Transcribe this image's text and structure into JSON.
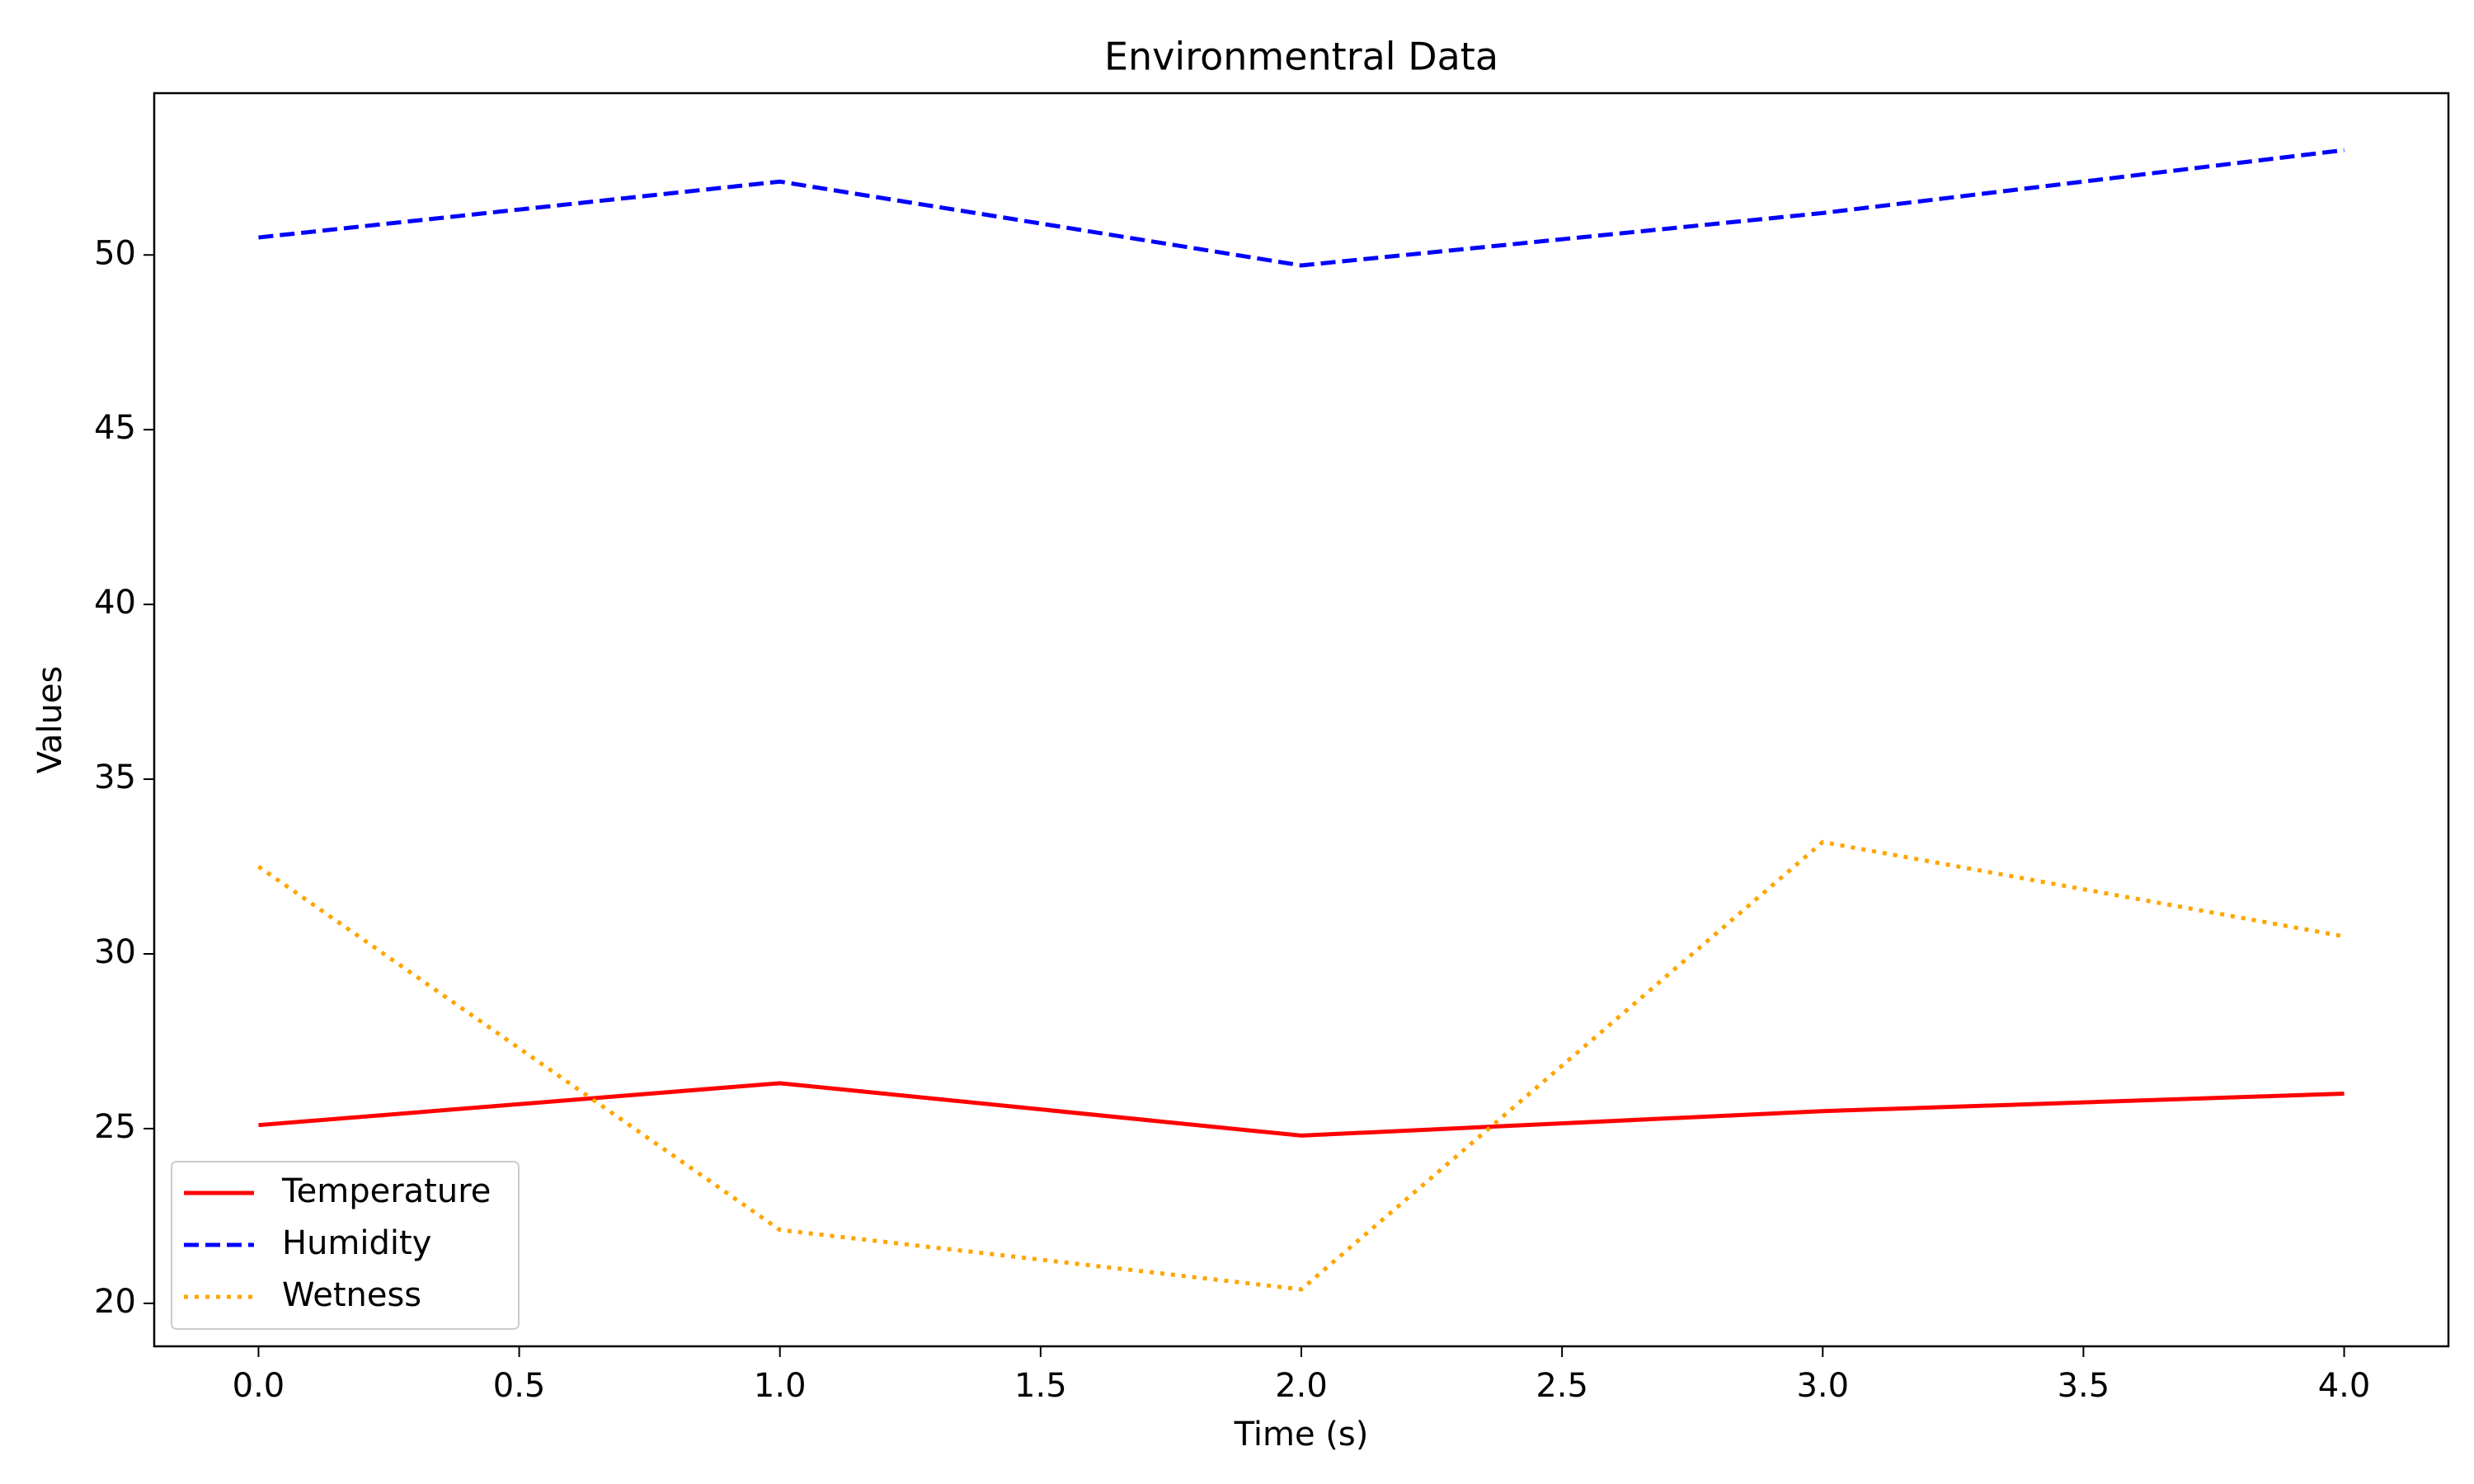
{
  "chart_data": {
    "type": "line",
    "title": "Environmentral Data",
    "x_label": "Time (s)",
    "y_label": "Values",
    "x": [
      0,
      1,
      2,
      3,
      4
    ],
    "series": [
      {
        "name": "Temperature",
        "color": "#ff0000",
        "linestyle": "solid",
        "values": [
          25.1,
          26.3,
          24.8,
          25.5,
          26.0
        ]
      },
      {
        "name": "Humidity",
        "color": "#0000ff",
        "linestyle": "dashed",
        "values": [
          50.5,
          52.1,
          49.7,
          51.2,
          53.0
        ]
      },
      {
        "name": "Wetness",
        "color": "#ffa500",
        "linestyle": "dotted",
        "values": [
          32.5,
          22.1,
          20.4,
          33.2,
          30.5
        ]
      }
    ],
    "xlim": [
      -0.2,
      4.2
    ],
    "xticks": [
      {
        "value": 0,
        "label": "0.0"
      },
      {
        "value": 0.5,
        "label": "0.5"
      },
      {
        "value": 1,
        "label": "1.0"
      },
      {
        "value": 1.5,
        "label": "1.5"
      },
      {
        "value": 2,
        "label": "2.0"
      },
      {
        "value": 2.5,
        "label": "2.5"
      },
      {
        "value": 3,
        "label": "3.0"
      },
      {
        "value": 3.5,
        "label": "3.5"
      },
      {
        "value": 4,
        "label": "4.0"
      }
    ],
    "ylim": [
      18.77,
      54.63
    ],
    "yticks": [
      20,
      25,
      30,
      35,
      40,
      45,
      50
    ],
    "grid": false,
    "legend_position": "lower left"
  }
}
